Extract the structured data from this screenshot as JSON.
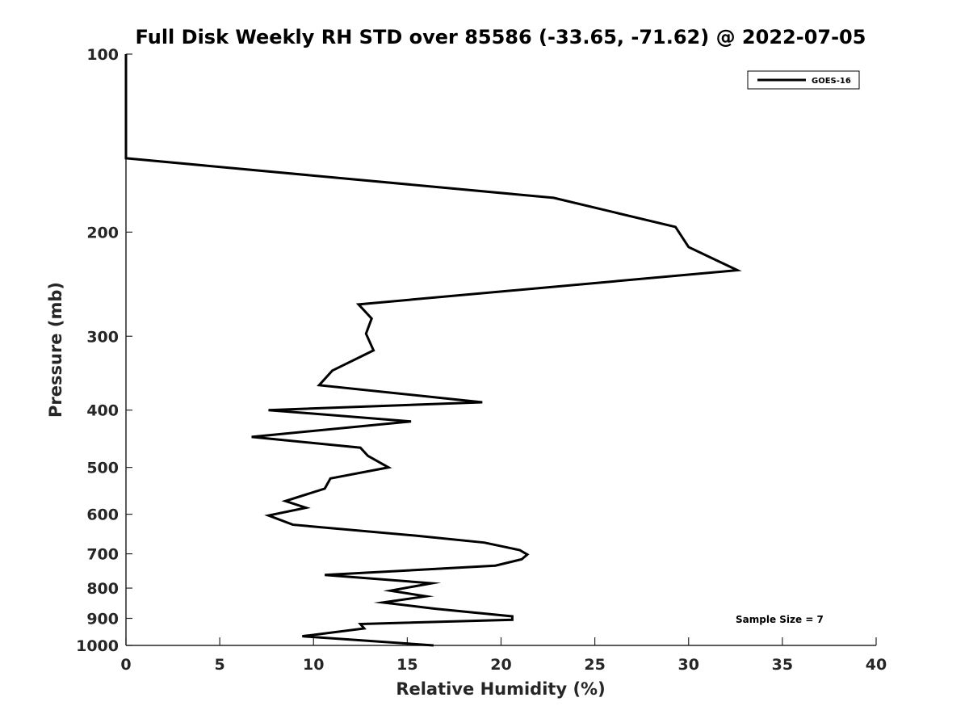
{
  "chart_data": {
    "type": "line",
    "title": "Full Disk Weekly RH STD over 85586 (-33.65, -71.62) @ 2022-07-05",
    "xlabel": "Relative Humidity (%)",
    "ylabel": "Pressure (mb)",
    "xlim": [
      0,
      40
    ],
    "ylim": [
      100,
      1000
    ],
    "y_scale": "log",
    "y_reversed": true,
    "grid": false,
    "legend_position": "top-right",
    "x_ticks": [
      "0",
      "5",
      "10",
      "15",
      "20",
      "25",
      "30",
      "35",
      "40"
    ],
    "y_ticks": [
      "100",
      "200",
      "300",
      "400",
      "500",
      "600",
      "700",
      "800",
      "900",
      "1000"
    ],
    "annotation": "Sample Size = 7",
    "series": [
      {
        "name": "GOES-16",
        "color": "#000000",
        "points": [
          [
            0.0,
            100
          ],
          [
            0.0,
            125
          ],
          [
            0.0,
            150
          ],
          [
            22.8,
            175
          ],
          [
            29.3,
            196
          ],
          [
            30.0,
            212
          ],
          [
            32.6,
            232
          ],
          [
            12.4,
            265
          ],
          [
            13.1,
            280
          ],
          [
            12.8,
            297
          ],
          [
            13.2,
            317
          ],
          [
            11.0,
            343
          ],
          [
            10.3,
            363
          ],
          [
            19.0,
            388
          ],
          [
            7.6,
            400
          ],
          [
            15.2,
            418
          ],
          [
            6.7,
            444
          ],
          [
            12.5,
            463
          ],
          [
            12.9,
            478
          ],
          [
            14.0,
            500
          ],
          [
            10.9,
            522
          ],
          [
            10.6,
            543
          ],
          [
            8.5,
            570
          ],
          [
            9.6,
            585
          ],
          [
            7.6,
            603
          ],
          [
            8.9,
            625
          ],
          [
            15.4,
            652
          ],
          [
            19.1,
            670
          ],
          [
            21.0,
            690
          ],
          [
            21.4,
            702
          ],
          [
            21.1,
            715
          ],
          [
            19.7,
            733
          ],
          [
            10.6,
            760
          ],
          [
            16.3,
            785
          ],
          [
            14.1,
            808
          ],
          [
            16.0,
            826
          ],
          [
            13.7,
            846
          ],
          [
            16.5,
            867
          ],
          [
            20.6,
            893
          ],
          [
            20.6,
            905
          ],
          [
            12.5,
            920
          ],
          [
            12.7,
            936
          ],
          [
            9.4,
            965
          ],
          [
            16.4,
            1000
          ]
        ]
      }
    ]
  }
}
